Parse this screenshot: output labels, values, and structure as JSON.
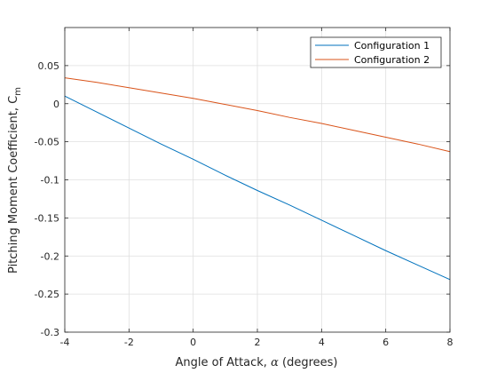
{
  "chart_data": {
    "type": "line",
    "title": "",
    "xlabel_prefix": "Angle of Attack, ",
    "xlabel_symbol": "α",
    "xlabel_suffix": " (degrees)",
    "ylabel_main": "Pitching Moment Coefficient, C",
    "ylabel_sub": "m",
    "xlim": [
      -4,
      8
    ],
    "ylim": [
      -0.3,
      0.1
    ],
    "xticks": [
      -4,
      -2,
      0,
      2,
      4,
      6,
      8
    ],
    "xtick_labels": [
      "-4",
      "-2",
      "0",
      "2",
      "4",
      "6",
      "8"
    ],
    "yticks": [
      -0.3,
      -0.25,
      -0.2,
      -0.15,
      -0.1,
      -0.05,
      0,
      0.05
    ],
    "ytick_labels": [
      "-0.3",
      "-0.25",
      "-0.2",
      "-0.15",
      "-0.1",
      "-0.05",
      "0",
      "0.05"
    ],
    "grid": true,
    "legend_position": "top-right",
    "series": [
      {
        "name": "Configuration 1",
        "color": "#0072BD",
        "x": [
          -4,
          -3,
          -2,
          -1,
          0,
          1,
          2,
          3,
          4,
          5,
          6,
          7,
          8
        ],
        "y": [
          0.01,
          -0.011,
          -0.032,
          -0.053,
          -0.073,
          -0.094,
          -0.114,
          -0.133,
          -0.153,
          -0.173,
          -0.193,
          -0.212,
          -0.231
        ]
      },
      {
        "name": "Configuration 2",
        "color": "#D95319",
        "x": [
          -4,
          -3,
          -2,
          -1,
          0,
          1,
          2,
          3,
          4,
          5,
          6,
          7,
          8
        ],
        "y": [
          0.034,
          0.028,
          0.021,
          0.014,
          0.007,
          -0.001,
          -0.009,
          -0.018,
          -0.026,
          -0.035,
          -0.044,
          -0.053,
          -0.063
        ]
      }
    ]
  }
}
